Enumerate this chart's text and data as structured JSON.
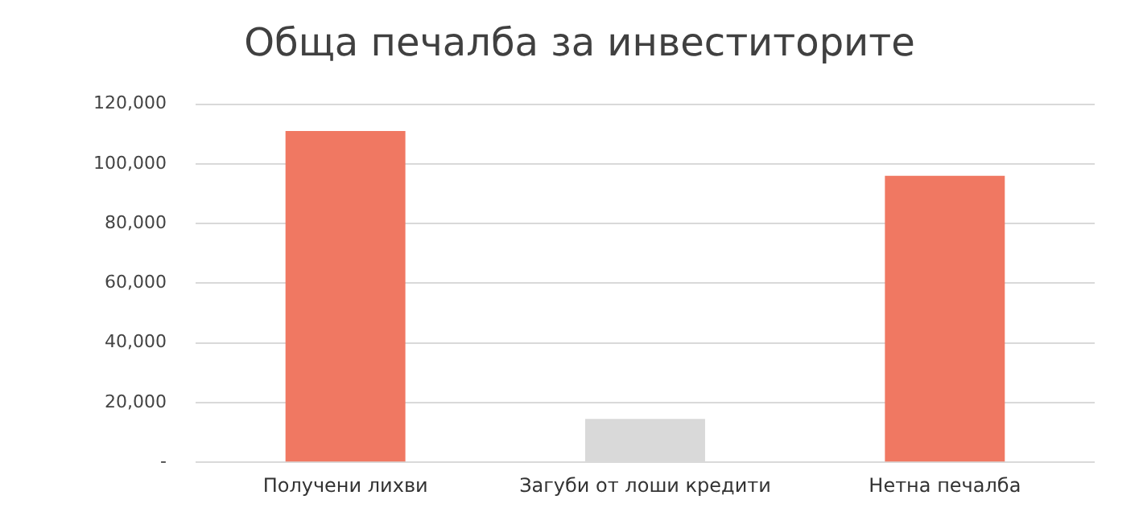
{
  "chart_data": {
    "type": "bar",
    "title": "Обща печалба за инвеститорите",
    "categories": [
      "Получени лихви",
      "Загуби от лоши кредити",
      "Нетна печалба"
    ],
    "values": [
      111000,
      14500,
      96000
    ],
    "colors": [
      "#f07862",
      "#d9d9d9",
      "#f07862"
    ],
    "ylim": [
      0,
      120000
    ],
    "yticks": [
      {
        "value": 0,
        "label": "-"
      },
      {
        "value": 20000,
        "label": "20,000"
      },
      {
        "value": 40000,
        "label": "40,000"
      },
      {
        "value": 60000,
        "label": "60,000"
      },
      {
        "value": 80000,
        "label": "80,000"
      },
      {
        "value": 100000,
        "label": "100,000"
      },
      {
        "value": 120000,
        "label": "120,000"
      }
    ],
    "grid": "y",
    "legend": false
  }
}
